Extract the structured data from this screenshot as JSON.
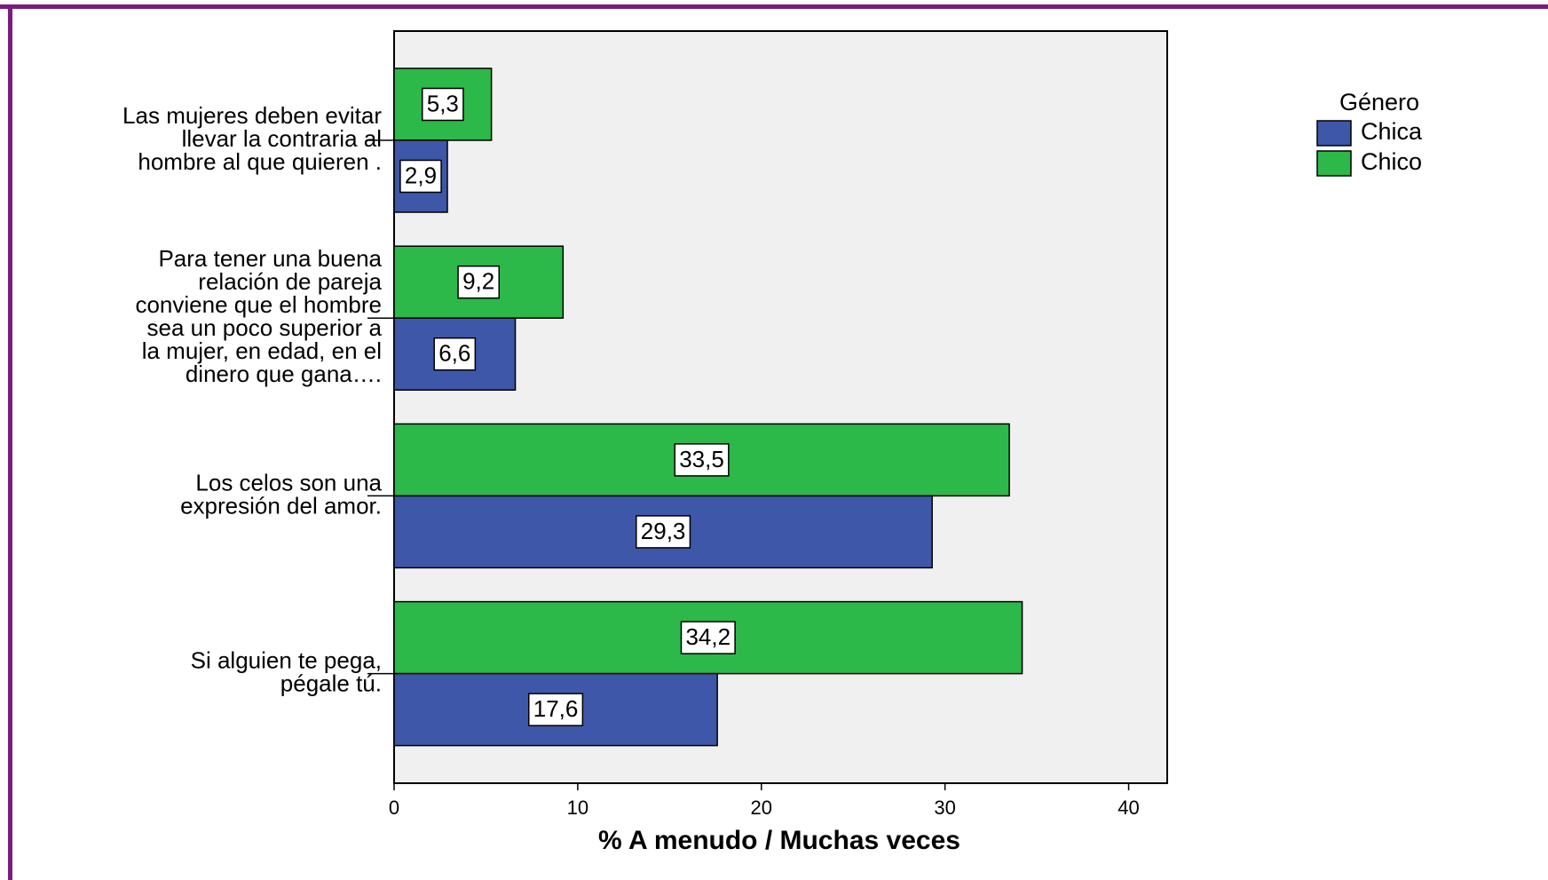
{
  "chart_data": {
    "type": "bar",
    "orientation": "horizontal",
    "categories": [
      [
        "Las mujeres deben evitar",
        "llevar la contraria al",
        "hombre al que quieren ."
      ],
      [
        "Para tener una buena",
        "relación de pareja",
        "conviene que el hombre",
        "sea un poco superior a",
        "la mujer, en edad, en el",
        "dinero que gana…."
      ],
      [
        "Los celos son una",
        "expresión del amor."
      ],
      [
        "Si alguien te pega,",
        "pégale tú."
      ]
    ],
    "series": [
      {
        "name": "Chica",
        "color": "#3f57a8",
        "values": [
          2.9,
          6.6,
          29.3,
          17.6
        ],
        "value_labels": [
          "2,9",
          "6,6",
          "29,3",
          "17,6"
        ]
      },
      {
        "name": "Chico",
        "color": "#2db84a",
        "values": [
          5.3,
          9.2,
          33.5,
          34.2
        ],
        "value_labels": [
          "5,3",
          "9,2",
          "33,5",
          "34,2"
        ]
      }
    ],
    "xlabel": "% A menudo / Muchas veces",
    "legend_title": "Género",
    "legend": "upper right",
    "xlim": [
      0,
      42.1
    ],
    "xticks": [
      0,
      10,
      20,
      30,
      40
    ]
  }
}
